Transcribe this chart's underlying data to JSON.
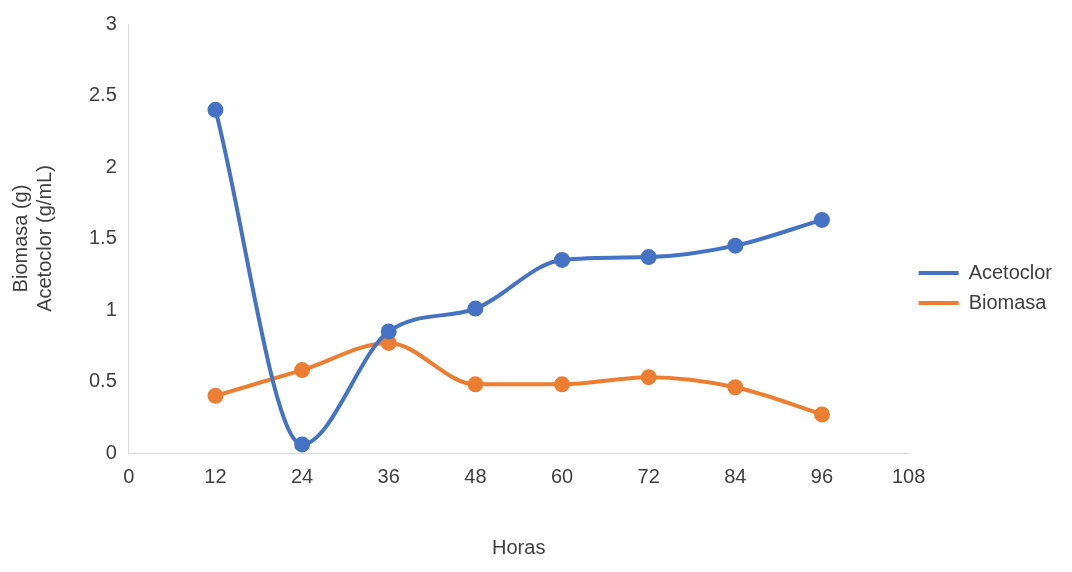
{
  "chart_data": {
    "type": "line",
    "xlabel": "Horas",
    "ylabel": "Biomasa (g)\nAcetoclor (g/mL)",
    "x": [
      12,
      24,
      36,
      48,
      60,
      72,
      84,
      96
    ],
    "series": [
      {
        "name": "Acetoclor",
        "color": "#4472c4",
        "values": [
          2.4,
          0.06,
          0.85,
          1.01,
          1.35,
          1.37,
          1.45,
          1.63
        ]
      },
      {
        "name": "Biomasa",
        "color": "#ed7d31",
        "values": [
          0.4,
          0.58,
          0.77,
          0.48,
          0.48,
          0.53,
          0.46,
          0.27
        ]
      }
    ],
    "xlim": [
      0,
      108
    ],
    "xticks": [
      0,
      12,
      24,
      36,
      48,
      60,
      72,
      84,
      96,
      108
    ],
    "ylim": [
      0,
      3
    ],
    "yticks": [
      0,
      0.5,
      1,
      1.5,
      2,
      2.5,
      3
    ],
    "grid": false,
    "legend": "right",
    "marker": "circle",
    "line_style": "solid"
  }
}
